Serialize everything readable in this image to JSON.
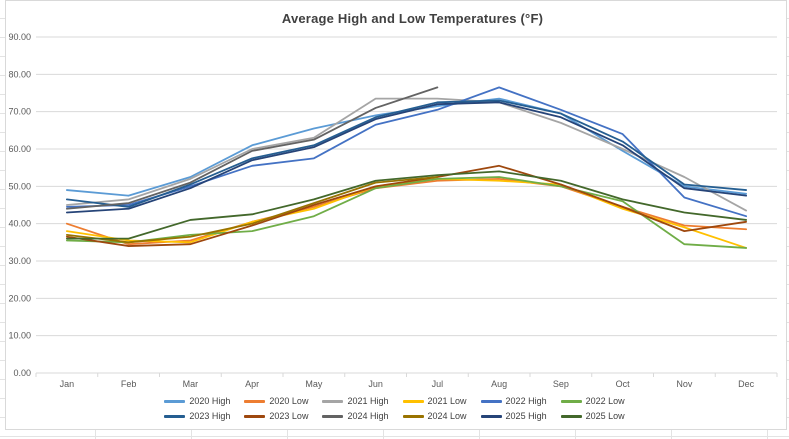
{
  "chart_data": {
    "type": "line",
    "title": "Average High and Low Temperatures (°F)",
    "xlabel": "",
    "ylabel": "",
    "categories": [
      "Jan",
      "Feb",
      "Mar",
      "Apr",
      "May",
      "Jun",
      "Jul",
      "Aug",
      "Sep",
      "Oct",
      "Nov",
      "Dec"
    ],
    "y_tick_values": [
      0,
      10,
      20,
      30,
      40,
      50,
      60,
      70,
      80,
      90
    ],
    "y_tick_labels": [
      "0.00",
      "10.00",
      "20.00",
      "30.00",
      "40.00",
      "50.00",
      "60.00",
      "70.00",
      "80.00",
      "90.00"
    ],
    "ylim": [
      0,
      90
    ],
    "grid": true,
    "legend_position": "bottom",
    "colors": {
      "gridline": "#d9d9d9",
      "axis_line": "#d9d9d9",
      "tick_label": "#595959",
      "title": "#404040"
    },
    "series": [
      {
        "name": "2020 High",
        "color": "#5B9BD5",
        "values": [
          49,
          47.5,
          52.5,
          61,
          65.5,
          69,
          71.5,
          73.5,
          69.5,
          59.5,
          50,
          48
        ]
      },
      {
        "name": "2020 Low",
        "color": "#ED7D31",
        "values": [
          40,
          34.5,
          35.5,
          40.5,
          44.5,
          49.5,
          51.5,
          52,
          50,
          44.5,
          39.5,
          38.5
        ]
      },
      {
        "name": "2021 High",
        "color": "#A5A5A5",
        "values": [
          45,
          46.5,
          52,
          60,
          63,
          73.5,
          73.5,
          72.5,
          67,
          60,
          52.5,
          43.5
        ]
      },
      {
        "name": "2021 Low",
        "color": "#FFC000",
        "values": [
          38,
          35.5,
          35,
          40.5,
          44,
          50,
          52,
          51.5,
          50.5,
          44,
          39,
          33.5
        ]
      },
      {
        "name": "2022 High",
        "color": "#4472C4",
        "values": [
          44.5,
          45,
          50,
          55.5,
          57.5,
          66.5,
          70.5,
          76.5,
          70.5,
          64,
          47,
          42
        ]
      },
      {
        "name": "2022 Low",
        "color": "#70AD47",
        "values": [
          35.5,
          35,
          37,
          38,
          42,
          49.5,
          52,
          52.5,
          50,
          46,
          34.5,
          33.5
        ]
      },
      {
        "name": "2023 High",
        "color": "#255E91",
        "values": [
          46.5,
          44.5,
          50.5,
          57.5,
          61,
          68.5,
          72.5,
          73,
          69.5,
          62,
          50.5,
          49
        ]
      },
      {
        "name": "2023 Low",
        "color": "#9E480E",
        "values": [
          36.5,
          34,
          34.5,
          39.5,
          45,
          50,
          52.5,
          55.5,
          50.5,
          44.5,
          38,
          40.5
        ]
      },
      {
        "name": "2024 High",
        "color": "#636363",
        "values": [
          44,
          45.5,
          51,
          59.5,
          62.5,
          71,
          76.5,
          null,
          null,
          null,
          null,
          null
        ]
      },
      {
        "name": "2024 Low",
        "color": "#997300",
        "values": [
          37,
          35,
          36.5,
          40,
          45.5,
          51,
          52.5,
          null,
          null,
          null,
          null,
          null
        ]
      },
      {
        "name": "2025 High",
        "color": "#264478",
        "values": [
          43,
          44,
          49.5,
          57,
          60.5,
          68,
          72,
          72.5,
          68.5,
          61,
          49.5,
          47.5
        ]
      },
      {
        "name": "2025 Low",
        "color": "#43682B",
        "values": [
          36,
          36,
          41,
          42.5,
          46.5,
          51.5,
          53,
          54,
          51.5,
          46.5,
          43,
          41
        ]
      }
    ],
    "legend_rows": [
      [
        "2020 High",
        "2020 Low",
        "2021 High",
        "2021 Low",
        "2022 High",
        "2022 Low"
      ],
      [
        "2023 High",
        "2023 Low",
        "2024 High",
        "2024 Low",
        "2025 High",
        "2025 Low"
      ]
    ]
  }
}
